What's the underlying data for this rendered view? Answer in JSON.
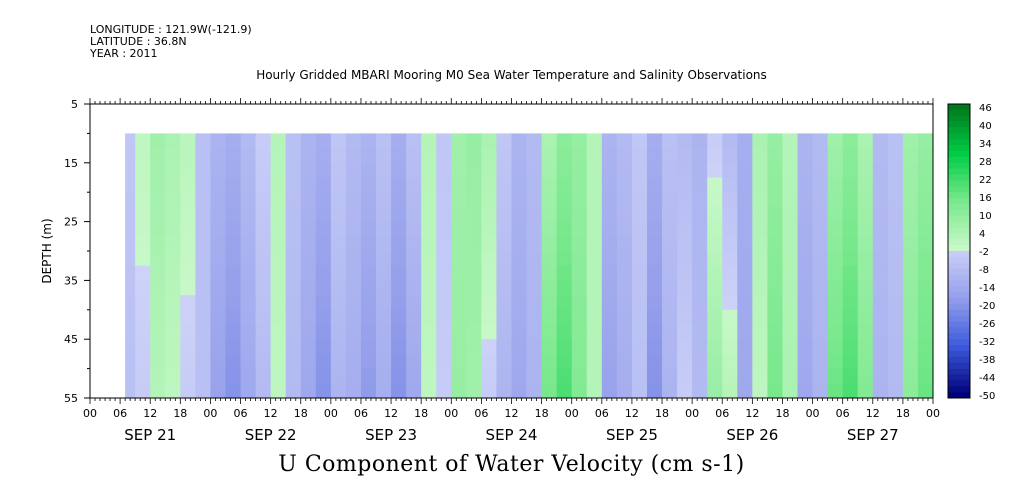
{
  "header": {
    "longitude": "LONGITUDE : 121.9W(-121.9)",
    "latitude": "LATITUDE : 36.8N",
    "year": "YEAR : 2011",
    "title": "Hourly Gridded MBARI Mooring M0 Sea Water Temperature and Salinity Observations"
  },
  "chart_data": {
    "type": "heatmap",
    "title": "U Component of Water Velocity (cm s-1)",
    "ylabel": "DEPTH (m)",
    "xlabel": "",
    "y_reversed": true,
    "ylim": [
      5,
      55
    ],
    "yticks": [
      5,
      15,
      25,
      35,
      45,
      55
    ],
    "data_depth_range": [
      10,
      55
    ],
    "xlim_hours": [
      0,
      168
    ],
    "data_start_hour": 7,
    "data_end_hour": 168,
    "hour_tick_labels": [
      "00",
      "06",
      "12",
      "18",
      "00",
      "06",
      "12",
      "18",
      "00",
      "06",
      "12",
      "18",
      "00",
      "06",
      "12",
      "18",
      "00",
      "06",
      "12",
      "18",
      "00",
      "06",
      "12",
      "18",
      "00",
      "06",
      "12",
      "18",
      "00"
    ],
    "day_labels": [
      "SEP 21",
      "SEP 22",
      "SEP 23",
      "SEP 24",
      "SEP 25",
      "SEP 26",
      "SEP 27"
    ],
    "colorbar": {
      "levels": [
        48,
        46,
        44,
        42,
        40,
        38,
        36,
        34,
        32,
        30,
        28,
        26,
        24,
        22,
        20,
        18,
        16,
        14,
        12,
        10,
        8,
        6,
        4,
        2,
        0,
        -2,
        -4,
        -6,
        -8,
        -10,
        -12,
        -14,
        -16,
        -18,
        -20,
        -22,
        -24,
        -26,
        -28,
        -30,
        -32,
        -34,
        -36,
        -38,
        -40,
        -42,
        -44,
        -46,
        -48,
        -50
      ],
      "labels": [
        "46",
        "40",
        "34",
        "28",
        "22",
        "16",
        "10",
        "4",
        "-2",
        "-8",
        "-14",
        "-20",
        "-26",
        "-32",
        "-38",
        "-44",
        "-50"
      ],
      "range": [
        -50,
        48
      ]
    },
    "velocity_profile": {
      "hours": [
        7,
        9,
        12,
        15,
        18,
        21,
        24,
        27,
        30,
        33,
        36,
        39,
        42,
        45,
        48,
        51,
        54,
        57,
        60,
        63,
        66,
        69,
        72,
        75,
        78,
        81,
        84,
        87,
        90,
        93,
        96,
        99,
        102,
        105,
        108,
        111,
        114,
        117,
        120,
        123,
        126,
        129,
        132,
        135,
        138,
        141,
        144,
        147,
        150,
        153,
        156,
        159,
        162,
        165,
        168
      ],
      "surface_cm_s": [
        -4,
        2,
        8,
        6,
        3,
        -6,
        -10,
        -12,
        -8,
        -2,
        4,
        -6,
        -10,
        -12,
        -4,
        -8,
        -10,
        -6,
        -12,
        -6,
        4,
        -4,
        8,
        10,
        6,
        -4,
        -10,
        -8,
        6,
        12,
        10,
        4,
        -10,
        -8,
        -4,
        -12,
        -6,
        -8,
        -10,
        -2,
        -8,
        -12,
        6,
        10,
        4,
        -10,
        -8,
        8,
        12,
        6,
        -8,
        -6,
        8,
        10,
        0
      ],
      "bottom_cm_s": [
        -6,
        -2,
        4,
        2,
        -2,
        -6,
        -16,
        -20,
        -14,
        -8,
        2,
        -8,
        -14,
        -20,
        -10,
        -12,
        -18,
        -12,
        -20,
        -14,
        2,
        -2,
        10,
        8,
        -2,
        -10,
        -14,
        -10,
        16,
        22,
        14,
        4,
        -16,
        -12,
        -6,
        -20,
        -10,
        -2,
        -8,
        10,
        4,
        -14,
        2,
        16,
        6,
        -14,
        -10,
        18,
        22,
        14,
        -10,
        -8,
        12,
        18,
        0
      ]
    }
  }
}
